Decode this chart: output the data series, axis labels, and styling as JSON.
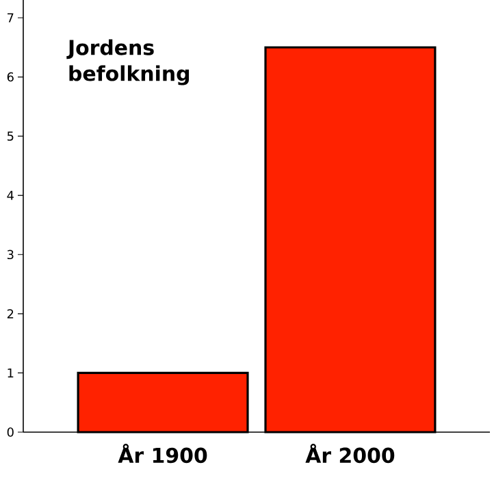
{
  "chart_data": {
    "type": "bar",
    "title": "Jordens befolkning",
    "categories": [
      "År 1900",
      "År 2000"
    ],
    "values": [
      1,
      6.5
    ],
    "color": "#ff2200",
    "ylim": [
      0,
      7.3
    ],
    "yticks": [
      0,
      1,
      2,
      3,
      4,
      5,
      6,
      7
    ],
    "grid": false
  }
}
